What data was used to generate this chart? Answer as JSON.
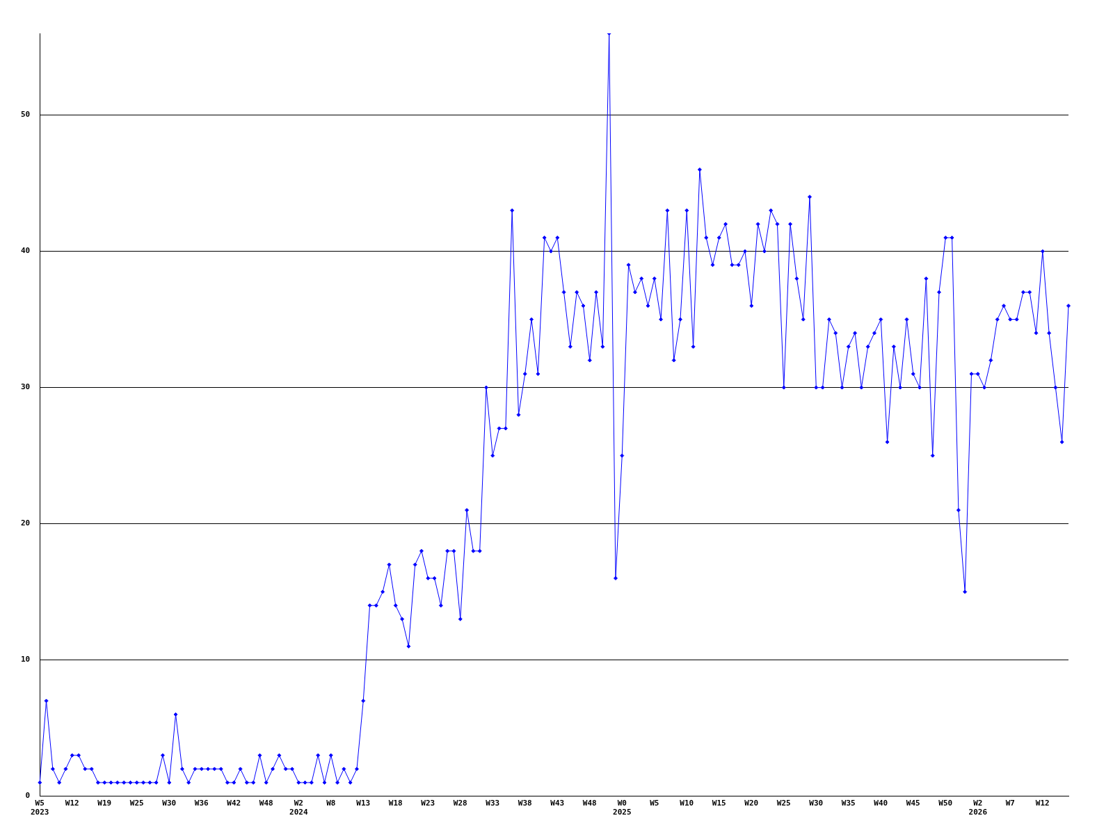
{
  "chart_data": {
    "type": "line",
    "categories": [
      "W5\n2023",
      null,
      null,
      null,
      null,
      "W12",
      null,
      null,
      null,
      null,
      "W19",
      null,
      null,
      null,
      null,
      "W25",
      null,
      null,
      null,
      null,
      "W30",
      null,
      null,
      null,
      null,
      "W36",
      null,
      null,
      null,
      null,
      "W42",
      null,
      null,
      null,
      null,
      "W48",
      null,
      null,
      null,
      null,
      "W2\n2024",
      null,
      null,
      null,
      null,
      "W8",
      null,
      null,
      null,
      null,
      "W13",
      null,
      null,
      null,
      null,
      "W18",
      null,
      null,
      null,
      null,
      "W23",
      null,
      null,
      null,
      null,
      "W28",
      null,
      null,
      null,
      null,
      "W33",
      null,
      null,
      null,
      null,
      "W38",
      null,
      null,
      null,
      null,
      "W43",
      null,
      null,
      null,
      null,
      "W48",
      null,
      null,
      null,
      null,
      "W0\n2025",
      null,
      null,
      null,
      null,
      "W5",
      null,
      null,
      null,
      null,
      "W10",
      null,
      null,
      null,
      null,
      "W15",
      null,
      null,
      null,
      null,
      "W20",
      null,
      null,
      null,
      null,
      "W25",
      null,
      null,
      null,
      null,
      "W30",
      null,
      null,
      null,
      null,
      "W35",
      null,
      null,
      null,
      null,
      "W40",
      null,
      null,
      null,
      null,
      "W45",
      null,
      null,
      null,
      null,
      "W50",
      null,
      null,
      null,
      null,
      "W2\n2026",
      null,
      null,
      null,
      null,
      "W7",
      null,
      null,
      null,
      null,
      "W12",
      null,
      null,
      null,
      null
    ],
    "series": [
      {
        "color": "#0000ff",
        "values": [
          1,
          7,
          2,
          1,
          2,
          3,
          3,
          2,
          2,
          1,
          1,
          1,
          1,
          1,
          1,
          1,
          1,
          1,
          1,
          3,
          1,
          6,
          2,
          1,
          2,
          2,
          2,
          2,
          2,
          1,
          1,
          2,
          1,
          1,
          3,
          1,
          2,
          3,
          2,
          2,
          1,
          1,
          1,
          3,
          1,
          3,
          1,
          2,
          1,
          2,
          7,
          14,
          14,
          15,
          17,
          14,
          13,
          11,
          17,
          18,
          16,
          16,
          14,
          18,
          18,
          13,
          21,
          18,
          18,
          30,
          25,
          27,
          27,
          43,
          28,
          31,
          35,
          31,
          41,
          40,
          41,
          37,
          33,
          37,
          36,
          32,
          37,
          33,
          56,
          16,
          25,
          39,
          37,
          38,
          36,
          38,
          35,
          43,
          32,
          35,
          43,
          33,
          46,
          41,
          39,
          41,
          42,
          39,
          39,
          40,
          36,
          42,
          40,
          43,
          42,
          30,
          42,
          38,
          35,
          44,
          30,
          30,
          35,
          34,
          30,
          33,
          34,
          30,
          33,
          34,
          35,
          26,
          33,
          30,
          35,
          31,
          30,
          38,
          25,
          37,
          41,
          41,
          21,
          15,
          31,
          31,
          30,
          32,
          35,
          36,
          35,
          35,
          37,
          37,
          34,
          40,
          34,
          30,
          26,
          36
        ]
      }
    ],
    "ylim": [
      0,
      56
    ],
    "yticks": [
      0,
      10,
      20,
      30,
      40,
      50
    ],
    "grid": "y",
    "legend": false,
    "marker": "diamond",
    "line_style": "solid"
  }
}
